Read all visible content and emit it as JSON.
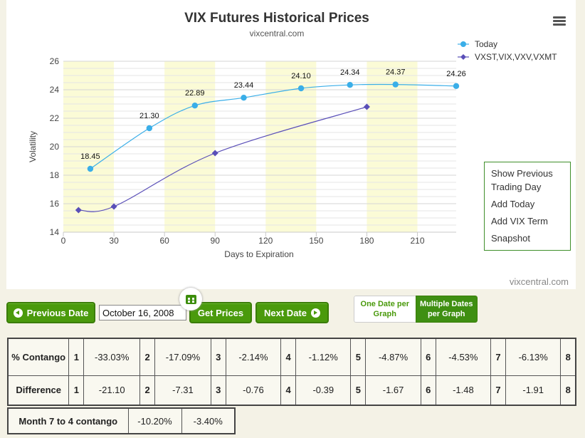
{
  "chart_data": {
    "type": "line",
    "title": "VIX Futures Historical Prices",
    "subtitle": "vixcentral.com",
    "xlabel": "Days to Expiration",
    "ylabel": "Volatility",
    "xlim": [
      0,
      233
    ],
    "ylim": [
      14,
      26
    ],
    "x_ticks": [
      "0",
      "30",
      "60",
      "90",
      "120",
      "150",
      "180",
      "210"
    ],
    "y_ticks": [
      "14",
      "16",
      "18",
      "20",
      "22",
      "24",
      "26"
    ],
    "legend_position": "top-right",
    "credit": "vixcentral.com",
    "series": [
      {
        "name": "Today",
        "color": "#3aaee8",
        "marker": "circle",
        "x": [
          16,
          51,
          78,
          107,
          141,
          170,
          197,
          233
        ],
        "values": [
          18.45,
          21.3,
          22.89,
          23.44,
          24.1,
          24.34,
          24.37,
          24.26
        ],
        "labels": [
          "18.45",
          "21.30",
          "22.89",
          "23.44",
          "24.10",
          "24.34",
          "24.37",
          "24.26"
        ]
      },
      {
        "name": "VXST,VIX,VXV,VXMT",
        "color": "#5a4fb8",
        "marker": "diamond",
        "x": [
          9,
          30,
          90,
          180
        ],
        "values": [
          15.55,
          15.8,
          19.55,
          22.8
        ]
      }
    ]
  },
  "chart_menu": {
    "show_previous": "Show Previous Trading Day",
    "add_today": "Add Today",
    "add_vix_term": "Add VIX Term",
    "snapshot": "Snapshot"
  },
  "controls": {
    "previous_date": "Previous Date",
    "date_value": "October 16, 2008",
    "get_prices": "Get Prices",
    "next_date": "Next Date",
    "one_date": "One Date per Graph",
    "multiple_dates": "Multiple Dates per Graph"
  },
  "contango_table": {
    "row1_label": "% Contango",
    "row2_label": "Difference",
    "months": [
      "1",
      "2",
      "3",
      "4",
      "5",
      "6",
      "7",
      "8"
    ],
    "contango": [
      "-33.03%",
      "-17.09%",
      "-2.14%",
      "-1.12%",
      "-4.87%",
      "-4.53%",
      "-6.13%"
    ],
    "difference": [
      "-21.10",
      "-7.31",
      "-0.76",
      "-0.39",
      "-1.67",
      "-1.48",
      "-1.91"
    ]
  },
  "month_table": {
    "label": "Month 7 to 4 contango",
    "values": [
      "-10.20%",
      "-3.40%"
    ]
  }
}
